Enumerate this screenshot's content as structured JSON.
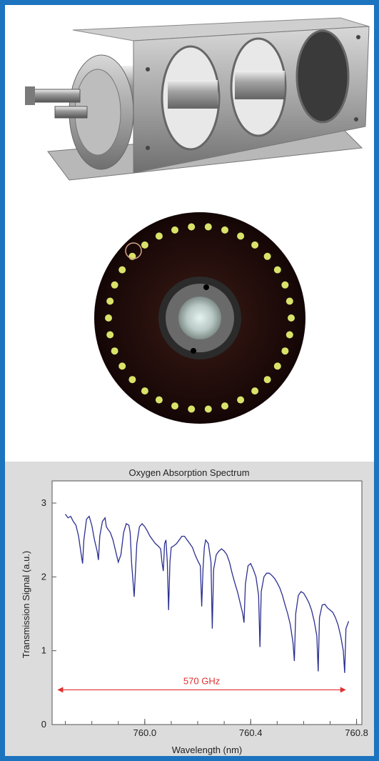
{
  "photos": [
    {
      "icon": "gas-cell-apparatus-photo"
    },
    {
      "icon": "ring-mirror-photo"
    }
  ],
  "chart_data": {
    "type": "line",
    "title": "Oxygen Absorption Spectrum",
    "xlabel": "Wavelength (nm)",
    "ylabel": "Transmission Signal (a.u.)",
    "xlim": [
      759.65,
      760.82
    ],
    "ylim": [
      0,
      3.3
    ],
    "x_ticks": [
      760.0,
      760.4,
      760.8
    ],
    "x_tick_labels": [
      "760.0",
      "760.4",
      "760.8"
    ],
    "y_ticks": [
      0,
      1,
      2,
      3
    ],
    "y_tick_labels": [
      "0",
      "1",
      "2",
      "3"
    ],
    "grid": false,
    "line_color": "#2b2f8f",
    "series": [
      {
        "x": [
          759.7,
          759.71,
          759.72,
          759.73,
          759.74,
          759.75,
          759.76,
          759.765,
          759.77,
          759.78,
          759.79,
          759.8,
          759.81,
          759.82,
          759.825,
          759.83,
          759.84,
          759.85,
          759.855,
          759.86,
          759.87,
          759.88,
          759.89,
          759.9,
          759.91,
          759.92,
          759.93,
          759.94,
          759.945,
          759.95,
          759.96,
          759.97,
          759.98,
          759.99,
          760.0,
          760.01,
          760.02,
          760.03,
          760.04,
          760.05,
          760.06,
          760.065,
          760.07,
          760.075,
          760.08,
          760.085,
          760.09,
          760.095,
          760.1,
          760.11,
          760.12,
          760.13,
          760.14,
          760.15,
          760.16,
          760.17,
          760.18,
          760.19,
          760.2,
          760.21,
          760.215,
          760.22,
          760.225,
          760.23,
          760.24,
          760.25,
          760.255,
          760.26,
          760.27,
          760.28,
          760.29,
          760.3,
          760.31,
          760.32,
          760.33,
          760.34,
          760.35,
          760.36,
          760.37,
          760.375,
          760.38,
          760.39,
          760.4,
          760.41,
          760.42,
          760.43,
          760.435,
          760.44,
          760.45,
          760.46,
          760.47,
          760.48,
          760.49,
          760.5,
          760.51,
          760.52,
          760.53,
          760.54,
          760.55,
          760.56,
          760.565,
          760.57,
          760.58,
          760.59,
          760.6,
          760.61,
          760.62,
          760.63,
          760.64,
          760.65,
          760.655,
          760.66,
          760.67,
          760.68,
          760.69,
          760.7,
          760.71,
          760.72,
          760.73,
          760.74,
          760.75,
          760.755,
          760.76,
          760.765,
          760.77
        ],
        "y": [
          2.85,
          2.8,
          2.82,
          2.75,
          2.7,
          2.55,
          2.3,
          2.18,
          2.5,
          2.78,
          2.82,
          2.7,
          2.5,
          2.35,
          2.23,
          2.55,
          2.75,
          2.8,
          2.68,
          2.65,
          2.6,
          2.5,
          2.35,
          2.2,
          2.3,
          2.6,
          2.72,
          2.7,
          2.6,
          2.2,
          1.73,
          2.45,
          2.68,
          2.72,
          2.68,
          2.62,
          2.55,
          2.5,
          2.45,
          2.42,
          2.38,
          2.2,
          2.08,
          2.45,
          2.5,
          2.2,
          1.55,
          2.2,
          2.4,
          2.42,
          2.45,
          2.5,
          2.55,
          2.55,
          2.5,
          2.45,
          2.4,
          2.3,
          2.22,
          2.15,
          1.6,
          2.1,
          2.4,
          2.5,
          2.45,
          2.2,
          1.3,
          2.1,
          2.3,
          2.35,
          2.38,
          2.35,
          2.3,
          2.2,
          2.05,
          1.92,
          1.8,
          1.65,
          1.5,
          1.38,
          1.9,
          2.15,
          2.18,
          2.1,
          2.0,
          1.75,
          1.05,
          1.8,
          2.0,
          2.05,
          2.05,
          2.02,
          1.98,
          1.92,
          1.85,
          1.75,
          1.62,
          1.5,
          1.35,
          1.1,
          0.86,
          1.5,
          1.75,
          1.8,
          1.78,
          1.72,
          1.65,
          1.55,
          1.4,
          1.2,
          0.72,
          1.45,
          1.62,
          1.63,
          1.58,
          1.55,
          1.52,
          1.45,
          1.35,
          1.2,
          1.0,
          0.7,
          1.3,
          1.35,
          1.4
        ]
      }
    ],
    "annotation": {
      "label": "570 GHz",
      "x_start": 759.67,
      "x_end": 760.76,
      "y": 0.47,
      "color": "#e03030"
    }
  }
}
